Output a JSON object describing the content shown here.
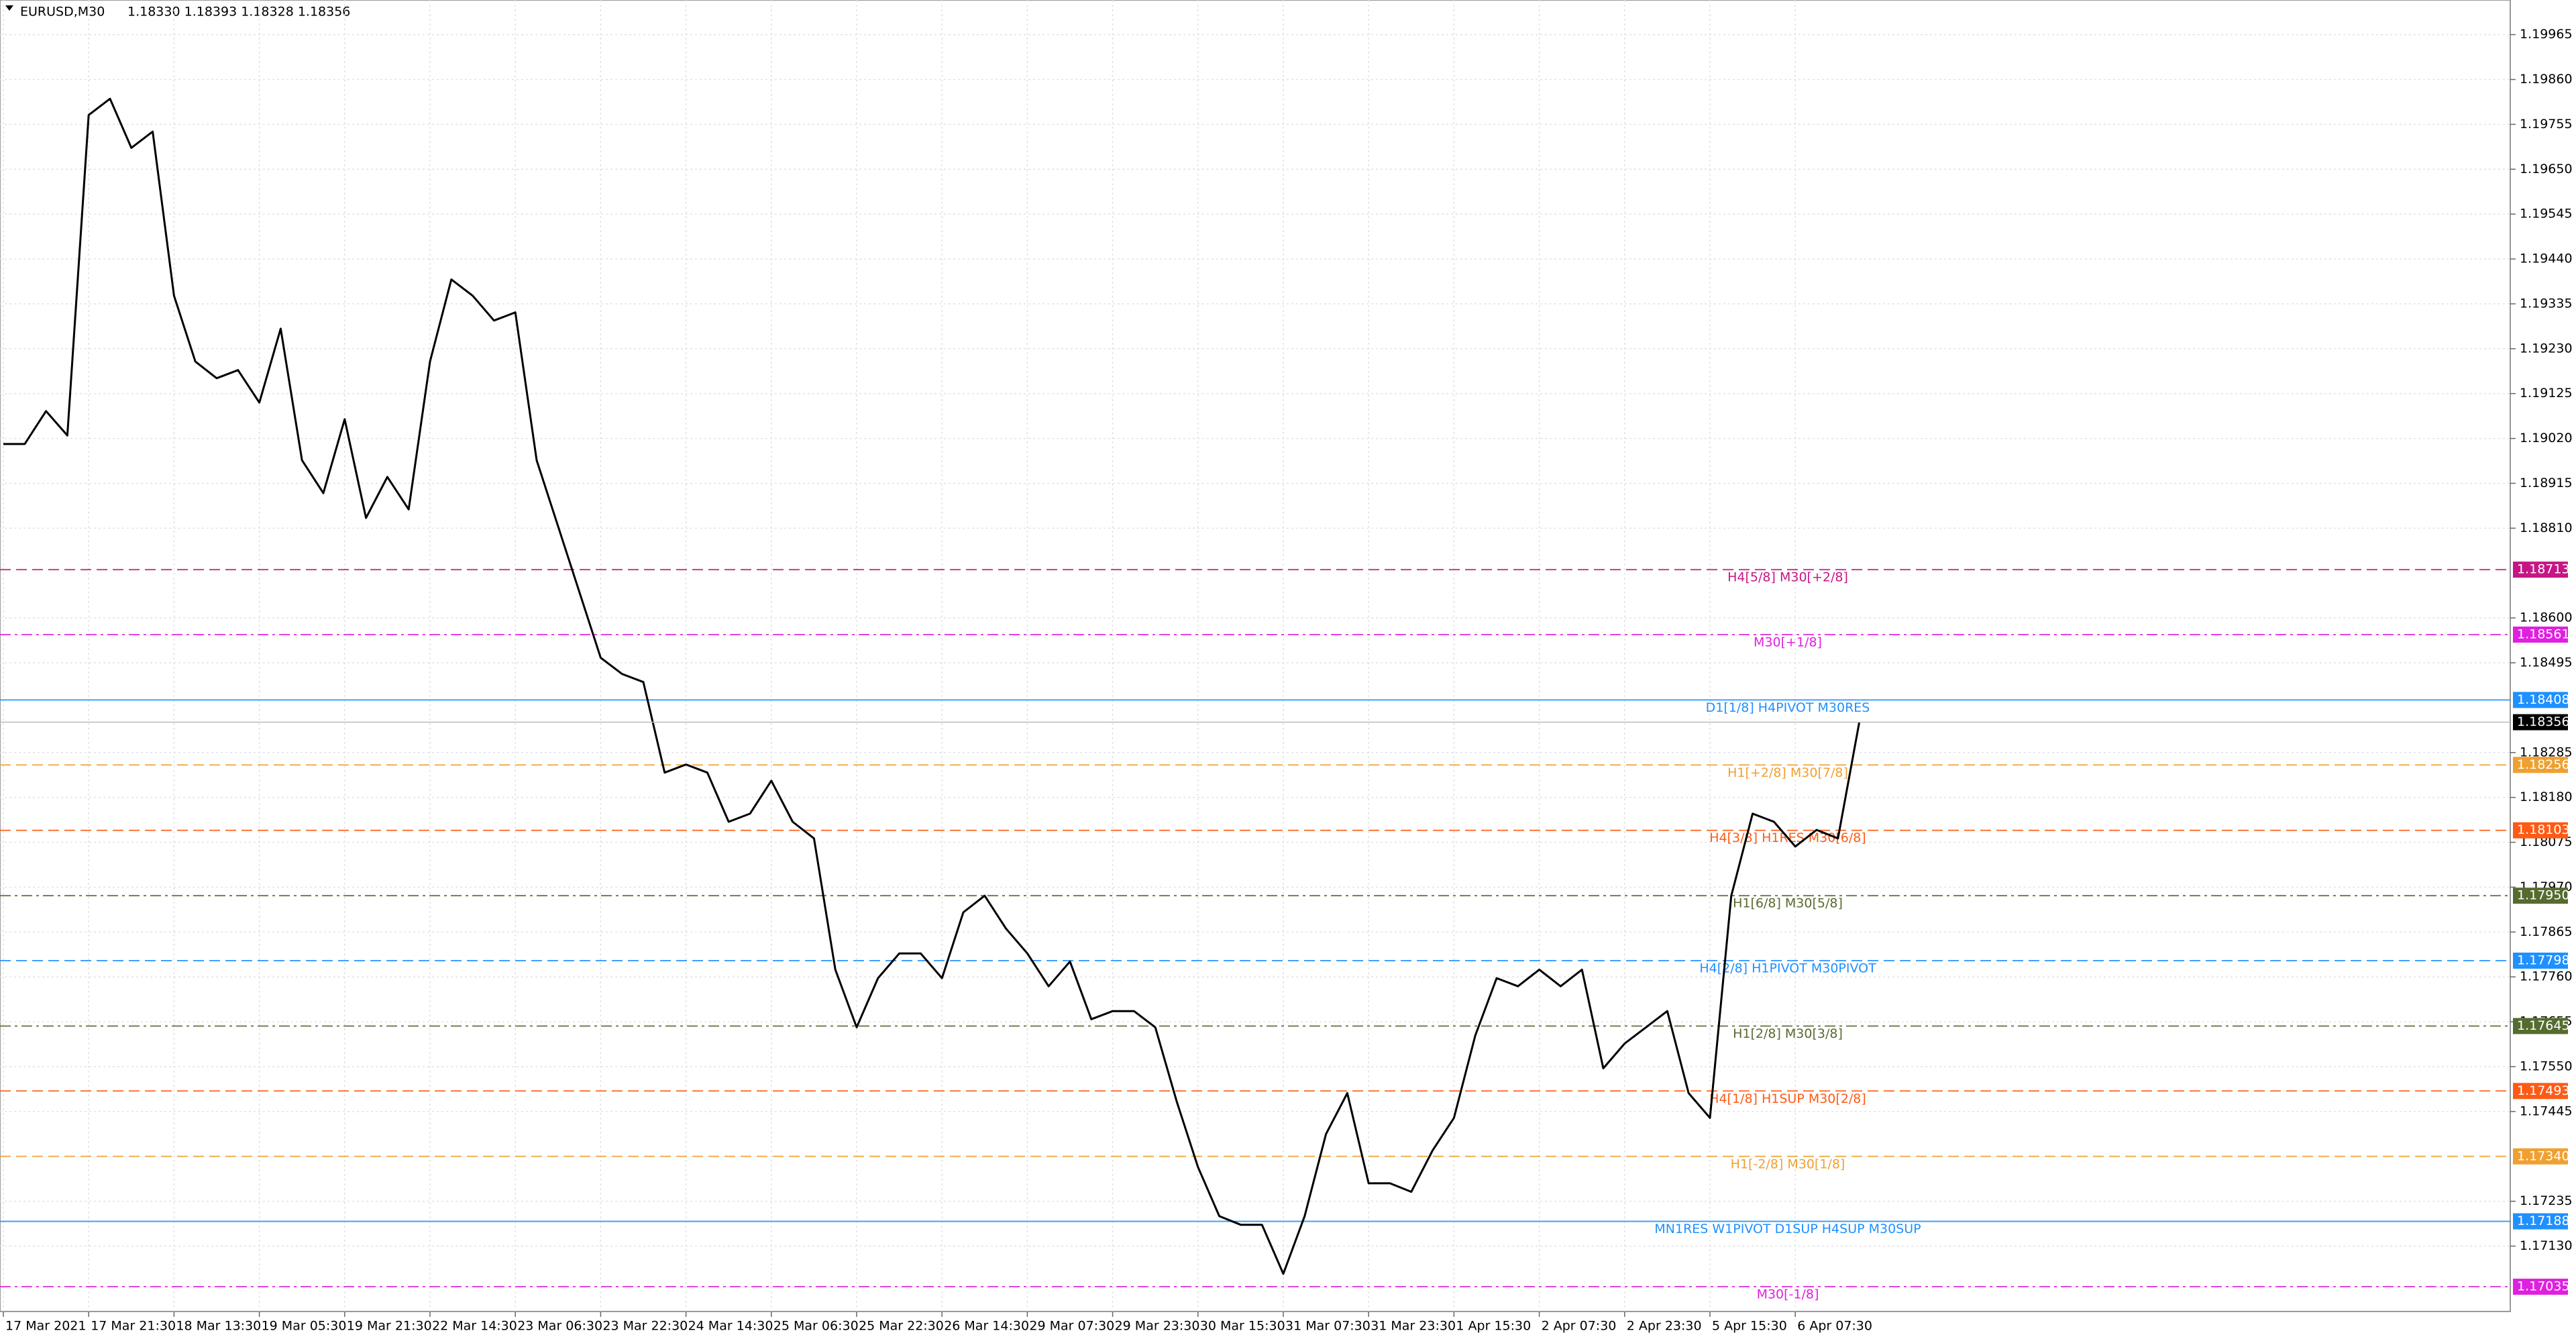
{
  "chart_data": {
    "type": "line",
    "symbol": "EURUSD,M30",
    "quote": "1.18330 1.18393 1.18328 1.18356",
    "categories": [
      "17 Mar 2021",
      null,
      null,
      null,
      "17 Mar 21:30",
      null,
      null,
      null,
      "18 Mar 13:30",
      null,
      null,
      null,
      "19 Mar 05:30",
      null,
      null,
      null,
      "19 Mar 21:30",
      null,
      null,
      null,
      "22 Mar 14:30",
      null,
      null,
      null,
      "23 Mar 06:30",
      null,
      null,
      null,
      "23 Mar 22:30",
      null,
      null,
      null,
      "24 Mar 14:30",
      null,
      null,
      null,
      "25 Mar 06:30",
      null,
      null,
      null,
      "25 Mar 22:30",
      null,
      null,
      null,
      "26 Mar 14:30",
      null,
      null,
      null,
      "29 Mar 07:30",
      null,
      null,
      null,
      "29 Mar 23:30",
      null,
      null,
      null,
      "30 Mar 15:30",
      null,
      null,
      null,
      "31 Mar 07:30",
      null,
      null,
      null,
      "31 Mar 23:30",
      null,
      null,
      null,
      "1 Apr 15:30",
      null,
      null,
      null,
      "2 Apr 07:30",
      null,
      null,
      null,
      "2 Apr 23:30",
      null,
      null,
      null,
      "5 Apr 15:30",
      null,
      null,
      null,
      "6 Apr 07:30",
      null,
      null,
      null
    ],
    "series": [
      {
        "name": "EURUSD,M30",
        "color": "#000000",
        "values": [
          1.19007,
          1.19007,
          1.19084,
          1.19027,
          1.19777,
          1.19815,
          1.197,
          1.19738,
          1.19354,
          1.192,
          1.19161,
          1.1918,
          1.19104,
          1.19277,
          1.18969,
          1.18892,
          1.19065,
          1.18834,
          1.1893,
          1.18854,
          1.192,
          1.19392,
          1.19354,
          1.19296,
          1.19315,
          1.18969,
          1.18815,
          1.18661,
          1.18507,
          1.18469,
          1.1845,
          1.18238,
          1.18257,
          1.18238,
          1.18123,
          1.18142,
          1.18219,
          1.18123,
          1.18084,
          1.17777,
          1.17642,
          1.17757,
          1.17815,
          1.17815,
          1.17757,
          1.17911,
          1.1795,
          1.17873,
          1.17815,
          1.17738,
          1.17796,
          1.17661,
          1.1768,
          1.1768,
          1.17642,
          1.17469,
          1.17315,
          1.172,
          1.1718,
          1.1718,
          1.17065,
          1.172,
          1.17392,
          1.17488,
          1.17277,
          1.17277,
          1.17257,
          1.17354,
          1.1743,
          1.17623,
          1.17757,
          1.17738,
          1.17777,
          1.17738,
          1.17777,
          1.17546,
          1.17604,
          1.17642,
          1.1768,
          1.17488,
          1.1743,
          1.1795,
          1.18142,
          1.18123,
          1.18065,
          1.18104,
          1.18084,
          1.18356
        ]
      }
    ],
    "last_price": 1.18356,
    "ylim": [
      1.16977,
      1.20046
    ],
    "yticks": [
      1.19965,
      {
        "value": 1.1986,
        "label": "1.19860"
      },
      1.19755,
      {
        "value": 1.1965,
        "label": "1.19650"
      },
      1.19545,
      {
        "value": 1.1944,
        "label": "1.19440"
      },
      1.19335,
      {
        "value": 1.1923,
        "label": "1.19230"
      },
      1.19125,
      {
        "value": 1.1902,
        "label": "1.19020"
      },
      1.18915,
      {
        "value": 1.1881,
        "label": "1.18810"
      },
      {
        "value": 1.186,
        "label": "1.18600"
      },
      1.18495,
      1.18285,
      {
        "value": 1.1818,
        "label": "1.18180"
      },
      1.18075,
      {
        "value": 1.1797,
        "label": "1.17970"
      },
      1.17865,
      {
        "value": 1.1776,
        "label": "1.17760"
      },
      1.17655,
      {
        "value": 1.1755,
        "label": "1.17550"
      },
      1.17445,
      1.17235,
      {
        "value": 1.1713,
        "label": "1.17130"
      }
    ],
    "grid": true,
    "levels": [
      {
        "value": 1.18713,
        "label": "H4[5/8] M30[+2/8]",
        "color": "#c71585",
        "style": "dashed"
      },
      {
        "value": 1.18561,
        "label": "M30[+1/8]",
        "color": "#e020e0",
        "style": "dashdot"
      },
      {
        "value": 1.18408,
        "label": "D1[1/8] H4PIVOT M30RES",
        "color": "#1e90ff",
        "style": "solid"
      },
      {
        "value": 1.18256,
        "label": "H1[+2/8] M30[7/8]",
        "color": "#f0a030",
        "style": "dashed"
      },
      {
        "value": 1.18103,
        "label": "H4[3/8] H1RES M30[6/8]",
        "color": "#ff5a14",
        "style": "dashed"
      },
      {
        "value": 1.1795,
        "value_label": "1.17950",
        "label": "H1[6/8] M30[5/8]",
        "color": "#556b2f",
        "style": "dashdot"
      },
      {
        "value": 1.17798,
        "label": "H4[2/8] H1PIVOT M30PIVOT",
        "color": "#1e90ff",
        "style": "dashed"
      },
      {
        "value": 1.17645,
        "label": "H1[2/8] M30[3/8]",
        "color": "#556b2f",
        "style": "dashdot"
      },
      {
        "value": 1.17493,
        "label": "H4[1/8] H1SUP M30[2/8]",
        "color": "#ff5a14",
        "style": "dashed"
      },
      {
        "value": 1.1734,
        "value_label": "1.17340",
        "label": "H1[-2/8] M30[1/8]",
        "color": "#f0a030",
        "style": "dashed"
      },
      {
        "value": 1.17188,
        "label": "MN1RES W1PIVOT D1SUP H4SUP M30SUP",
        "color": "#1e90ff",
        "style": "solid"
      },
      {
        "value": 1.17035,
        "label": "M30[-1/8]",
        "color": "#e020e0",
        "style": "dashdot"
      }
    ]
  }
}
